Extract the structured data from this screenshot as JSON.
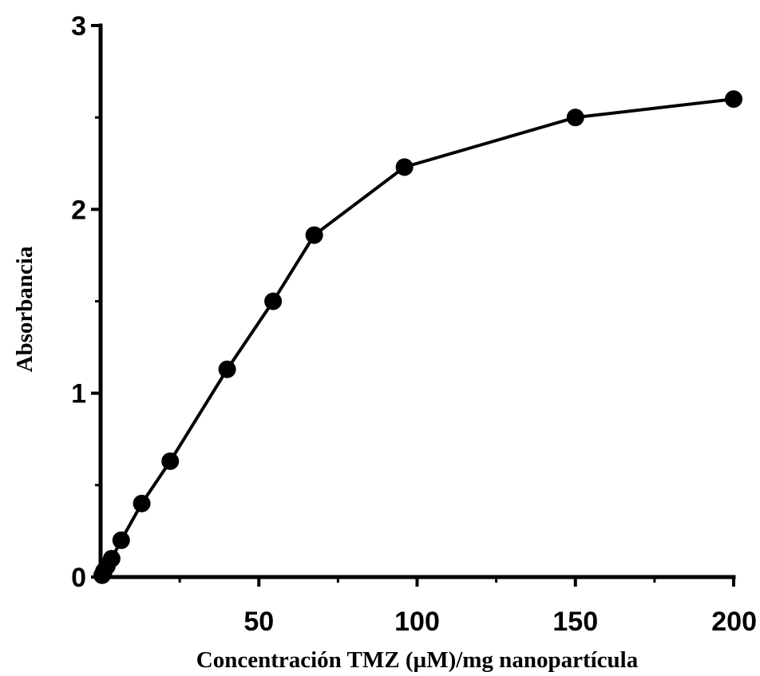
{
  "chart_data": {
    "type": "line",
    "title": "",
    "xlabel": "Concentración TMZ (µM)/mg nanopartícula",
    "ylabel": "Absorbancia",
    "xlim": [
      0,
      200
    ],
    "ylim": [
      0,
      3
    ],
    "x_ticks": [
      50,
      100,
      150,
      200
    ],
    "x_tick_labels": [
      "50",
      "100",
      "150",
      "200"
    ],
    "x_minor_ticks": [
      25,
      75,
      125,
      175
    ],
    "y_ticks": [
      0,
      1,
      2,
      3
    ],
    "y_tick_labels": [
      "0",
      "1",
      "2",
      "3"
    ],
    "y_minor_ticks": [
      0.5,
      1.5,
      2.5
    ],
    "grid": false,
    "legend": "none",
    "series": [
      {
        "color": "#000000",
        "marker": "circle",
        "x": [
          0.5,
          1,
          2,
          3.5,
          6.5,
          13,
          22,
          40,
          54.5,
          67.5,
          96,
          150,
          200
        ],
        "y": [
          0.01,
          0.03,
          0.06,
          0.1,
          0.2,
          0.4,
          0.63,
          1.13,
          1.5,
          1.86,
          2.23,
          2.5,
          2.6
        ]
      }
    ]
  }
}
